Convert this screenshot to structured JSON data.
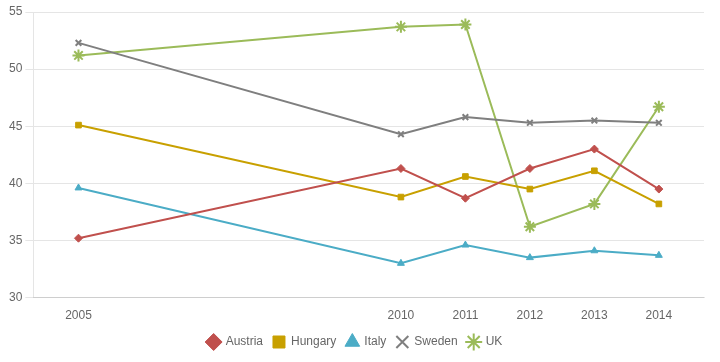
{
  "chart_data": {
    "type": "line",
    "x": [
      2005,
      2010,
      2011,
      2012,
      2013,
      2014
    ],
    "series": [
      {
        "name": "Austria",
        "color": "#C0504D",
        "marker": "diamond",
        "values": [
          35.2,
          41.3,
          38.7,
          41.3,
          43.0,
          39.5
        ]
      },
      {
        "name": "Hungary",
        "color": "#C8A000",
        "marker": "square",
        "values": [
          45.1,
          38.8,
          40.6,
          39.5,
          41.1,
          38.2
        ]
      },
      {
        "name": "Italy",
        "color": "#4BACC6",
        "marker": "triangle",
        "values": [
          39.6,
          33.0,
          34.6,
          33.5,
          34.1,
          33.7
        ]
      },
      {
        "name": "Sweden",
        "color": "#7F7F7F",
        "marker": "x",
        "values": [
          52.3,
          44.3,
          45.8,
          45.3,
          45.5,
          45.3
        ]
      },
      {
        "name": "UK",
        "color": "#9BBB59",
        "marker": "star",
        "values": [
          51.2,
          53.7,
          53.9,
          36.2,
          38.2,
          46.7
        ]
      }
    ],
    "xlim": [
      2004.3,
      2014.7
    ],
    "xticks": [
      2005,
      2010,
      2011,
      2012,
      2013,
      2014
    ],
    "ylim": [
      30,
      55
    ],
    "yticks": [
      30,
      35,
      40,
      45,
      50,
      55
    ],
    "grid": "y",
    "legend": "bottom"
  }
}
